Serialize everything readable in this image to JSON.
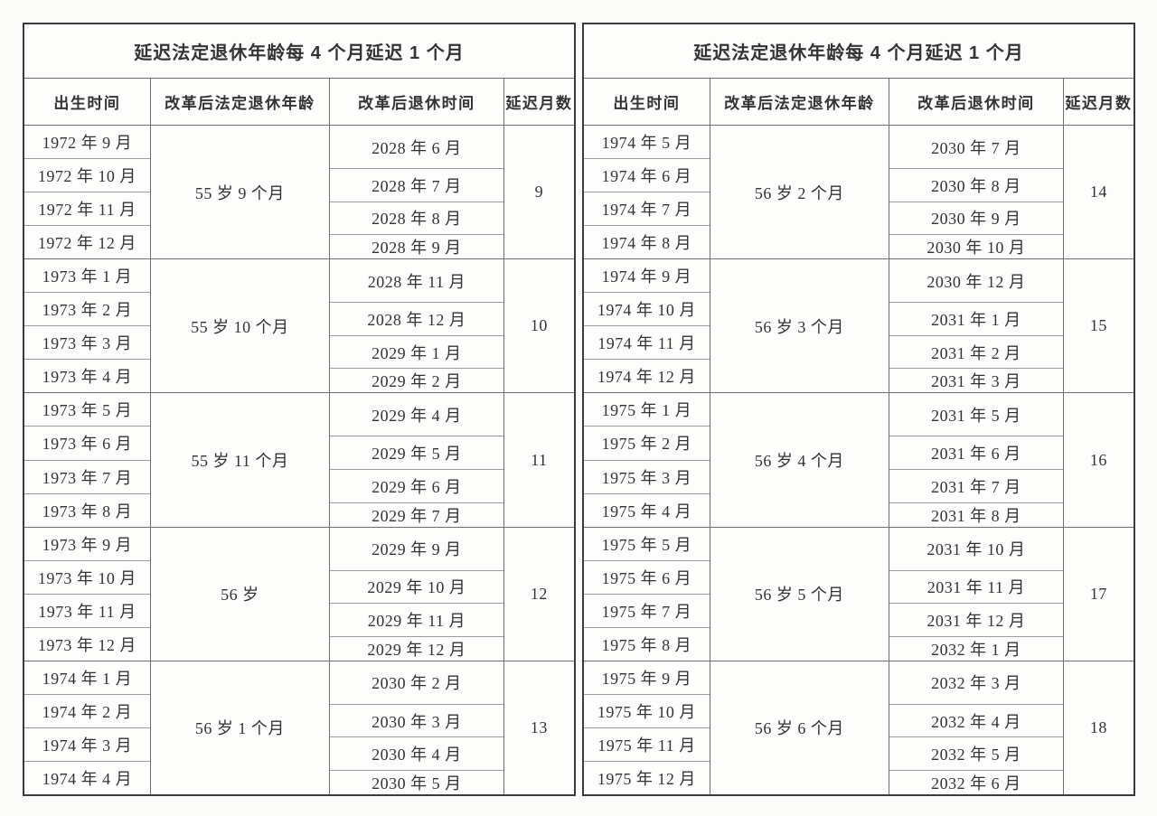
{
  "page": {
    "background": "#fbfbfa"
  },
  "colors": {
    "page_bg": "#fbfbfa",
    "table_bg": "#fdfdfc",
    "border_outer": "#3a3a3a",
    "border_strong": "#6e6e6e",
    "border_light": "#9c9c9c",
    "text": "#333333"
  },
  "tables": [
    {
      "title": "延迟法定退休年龄每 4 个月延迟 1 个月",
      "headers": [
        "出生时间",
        "改革后法定退休年龄",
        "改革后退休时间",
        "延迟月数"
      ],
      "groups": [
        {
          "birth_months": [
            "1972 年 9 月",
            "1972 年 10 月",
            "1972 年 11 月",
            "1972 年 12 月"
          ],
          "retirement_age": "55 岁 9 个月",
          "retirement_months": [
            "2028 年 6 月",
            "2028 年 7 月",
            "2028 年 8 月",
            "2028 年 9 月"
          ],
          "delay_months": "9"
        },
        {
          "birth_months": [
            "1973 年 1 月",
            "1973 年 2 月",
            "1973 年 3 月",
            "1973 年 4 月"
          ],
          "retirement_age": "55 岁 10 个月",
          "retirement_months": [
            "2028 年 11 月",
            "2028 年 12 月",
            "2029 年 1 月",
            "2029 年 2 月"
          ],
          "delay_months": "10"
        },
        {
          "birth_months": [
            "1973 年 5 月",
            "1973 年 6 月",
            "1973 年 7 月",
            "1973 年 8 月"
          ],
          "retirement_age": "55 岁 11 个月",
          "retirement_months": [
            "2029 年 4 月",
            "2029 年 5 月",
            "2029 年 6 月",
            "2029 年 7 月"
          ],
          "delay_months": "11"
        },
        {
          "birth_months": [
            "1973 年 9 月",
            "1973 年 10 月",
            "1973 年 11 月",
            "1973 年 12 月"
          ],
          "retirement_age": "56 岁",
          "retirement_months": [
            "2029 年 9 月",
            "2029 年 10 月",
            "2029 年 11 月",
            "2029 年 12 月"
          ],
          "delay_months": "12"
        },
        {
          "birth_months": [
            "1974 年 1 月",
            "1974 年 2 月",
            "1974 年 3 月",
            "1974 年 4 月"
          ],
          "retirement_age": "56 岁 1 个月",
          "retirement_months": [
            "2030 年 2 月",
            "2030 年 3 月",
            "2030 年 4 月",
            "2030 年 5 月"
          ],
          "delay_months": "13"
        }
      ]
    },
    {
      "title": "延迟法定退休年龄每 4 个月延迟 1 个月",
      "headers": [
        "出生时间",
        "改革后法定退休年龄",
        "改革后退休时间",
        "延迟月数"
      ],
      "groups": [
        {
          "birth_months": [
            "1974 年 5 月",
            "1974 年 6 月",
            "1974 年 7 月",
            "1974 年 8 月"
          ],
          "retirement_age": "56 岁 2 个月",
          "retirement_months": [
            "2030 年 7 月",
            "2030 年 8 月",
            "2030 年 9 月",
            "2030 年 10 月"
          ],
          "delay_months": "14"
        },
        {
          "birth_months": [
            "1974 年 9 月",
            "1974 年 10 月",
            "1974 年 11 月",
            "1974 年 12 月"
          ],
          "retirement_age": "56 岁 3 个月",
          "retirement_months": [
            "2030 年 12 月",
            "2031 年 1 月",
            "2031 年 2 月",
            "2031 年 3 月"
          ],
          "delay_months": "15"
        },
        {
          "birth_months": [
            "1975 年 1 月",
            "1975 年 2 月",
            "1975 年 3 月",
            "1975 年 4 月"
          ],
          "retirement_age": "56 岁 4 个月",
          "retirement_months": [
            "2031 年 5 月",
            "2031 年 6 月",
            "2031 年 7 月",
            "2031 年 8 月"
          ],
          "delay_months": "16"
        },
        {
          "birth_months": [
            "1975 年 5 月",
            "1975 年 6 月",
            "1975 年 7 月",
            "1975 年 8 月"
          ],
          "retirement_age": "56 岁 5 个月",
          "retirement_months": [
            "2031 年 10 月",
            "2031 年 11 月",
            "2031 年 12 月",
            "2032 年 1 月"
          ],
          "delay_months": "17"
        },
        {
          "birth_months": [
            "1975 年 9 月",
            "1975 年 10 月",
            "1975 年 11 月",
            "1975 年 12 月"
          ],
          "retirement_age": "56 岁 6 个月",
          "retirement_months": [
            "2032 年 3 月",
            "2032 年 4 月",
            "2032 年 5 月",
            "2032 年 6 月"
          ],
          "delay_months": "18"
        }
      ]
    }
  ]
}
